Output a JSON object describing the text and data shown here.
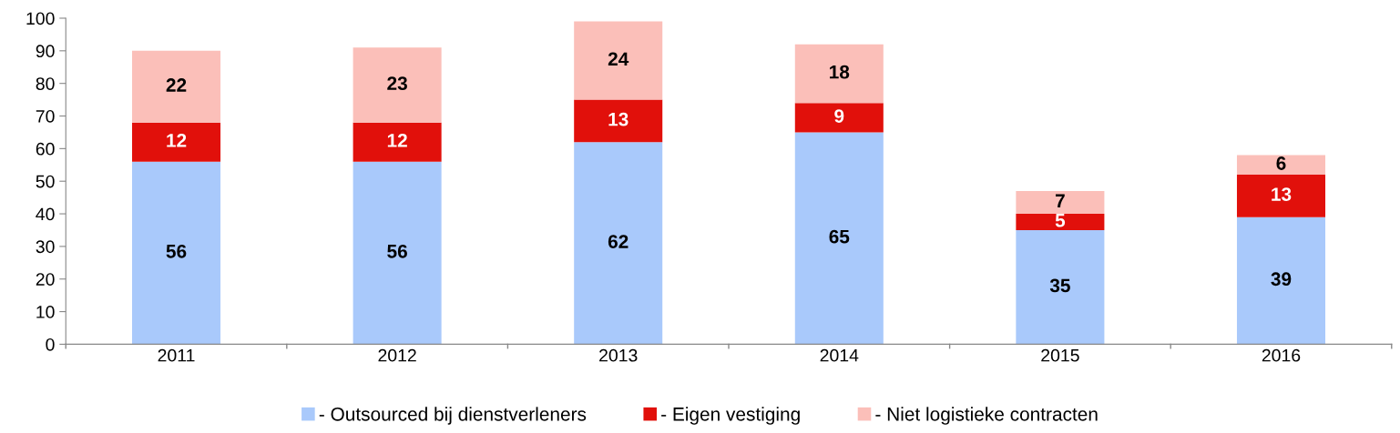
{
  "chart_data": {
    "type": "bar",
    "stacked": true,
    "categories": [
      "2011",
      "2012",
      "2013",
      "2014",
      "2015",
      "2016"
    ],
    "series": [
      {
        "name": "- Outsourced bij dienstverleners",
        "color": "#a9c9fb",
        "values": [
          56,
          56,
          62,
          65,
          35,
          39
        ]
      },
      {
        "name": "- Eigen vestiging",
        "color": "#e1100b",
        "values": [
          12,
          12,
          13,
          9,
          5,
          13
        ]
      },
      {
        "name": "- Niet logistieke contracten",
        "color": "#fbbfb9",
        "values": [
          22,
          23,
          24,
          18,
          7,
          6
        ]
      }
    ],
    "ylim": [
      0,
      100
    ],
    "yticks": [
      0,
      10,
      20,
      30,
      40,
      50,
      60,
      70,
      80,
      90,
      100
    ],
    "data_labels": true,
    "grid": false,
    "legend": "bottom"
  }
}
